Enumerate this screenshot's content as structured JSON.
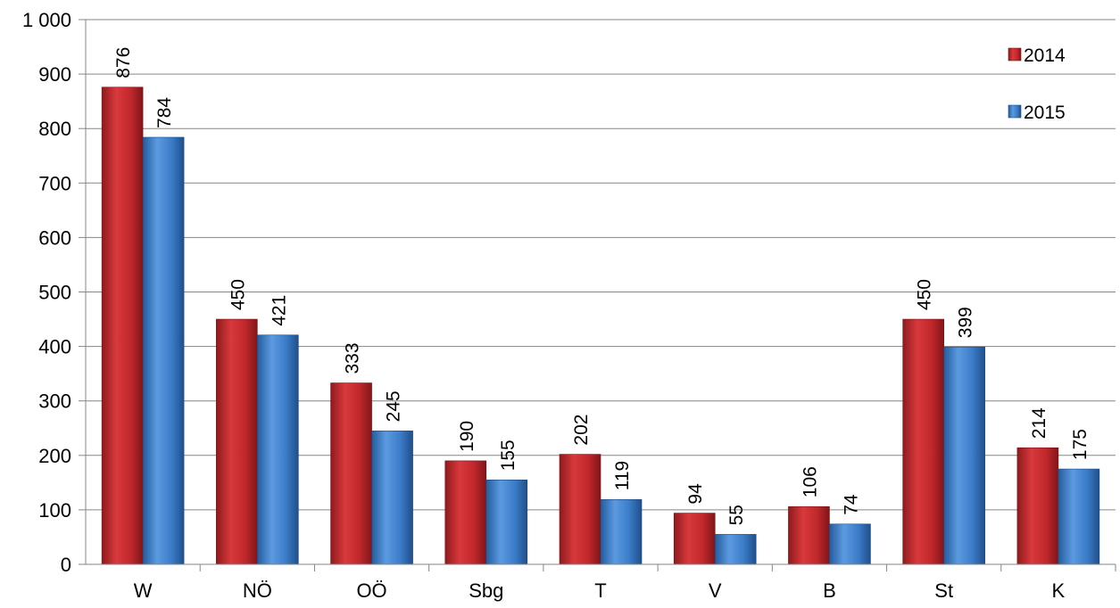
{
  "chart_data": {
    "type": "bar",
    "categories": [
      "W",
      "NÖ",
      "OÖ",
      "Sbg",
      "T",
      "V",
      "B",
      "St",
      "K"
    ],
    "series": [
      {
        "name": "2014",
        "values": [
          876,
          450,
          333,
          190,
          202,
          94,
          106,
          450,
          214
        ],
        "color": "#c0282c"
      },
      {
        "name": "2015",
        "values": [
          784,
          421,
          245,
          155,
          119,
          55,
          74,
          399,
          175
        ],
        "color": "#3b7cc8"
      }
    ],
    "yticks": [
      {
        "value": 0,
        "label": "0"
      },
      {
        "value": 100,
        "label": "100"
      },
      {
        "value": 200,
        "label": "200"
      },
      {
        "value": 300,
        "label": "300"
      },
      {
        "value": 400,
        "label": "400"
      },
      {
        "value": 500,
        "label": "500"
      },
      {
        "value": 600,
        "label": "600"
      },
      {
        "value": 700,
        "label": "700"
      },
      {
        "value": 800,
        "label": "800"
      },
      {
        "value": 900,
        "label": "900"
      },
      {
        "value": 1000,
        "label": "1 000"
      }
    ],
    "ylim": [
      0,
      1000
    ],
    "title": "",
    "xlabel": "",
    "ylabel": "",
    "grid": true,
    "legend": "top-right"
  }
}
